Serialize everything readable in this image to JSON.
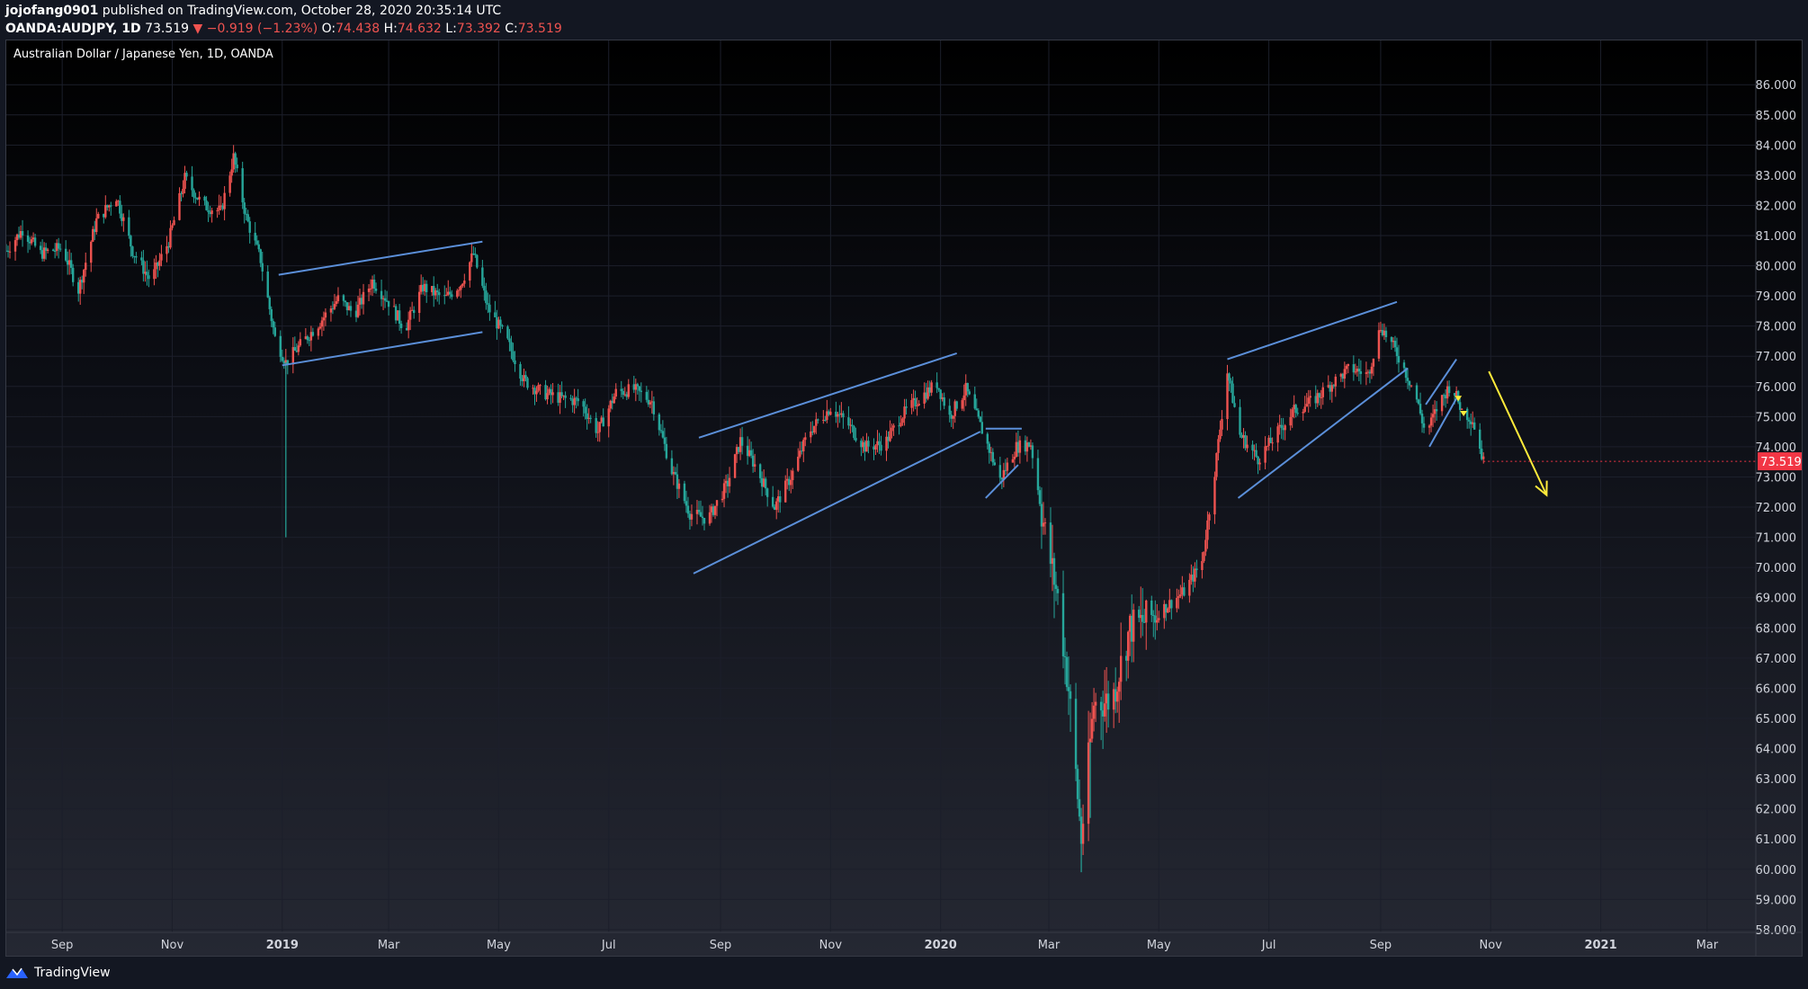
{
  "header": {
    "author": "jojofang0901",
    "published": "published on TradingView.com, October 28, 2020 20:35:14 UTC",
    "symbol": "OANDA:AUDJPY, 1D",
    "last": "73.519",
    "arrow": "▼",
    "change": "−0.919 (−1.23%)",
    "o_label": "O:",
    "o_val": "74.438",
    "h_label": "H:",
    "h_val": "74.632",
    "l_label": "L:",
    "l_val": "73.392",
    "c_label": "C:",
    "c_val": "73.519"
  },
  "footer": {
    "brand": "TradingView"
  },
  "colors": {
    "up": "#ef5350",
    "down": "#26a69a",
    "trendline": "#5b8fd9",
    "arrow": "#ffeb3b",
    "grid": "#1c1f2b",
    "badge": "#f23645"
  },
  "chart_data": {
    "type": "candlestick",
    "title": "Australian Dollar / Japanese Yen, 1D, OANDA",
    "ylim": [
      57.6,
      86.9
    ],
    "y_ticks": [
      "86.000",
      "85.000",
      "84.000",
      "83.000",
      "82.000",
      "81.000",
      "80.000",
      "79.000",
      "78.000",
      "77.000",
      "76.000",
      "75.000",
      "74.000",
      "73.000",
      "72.000",
      "71.000",
      "70.000",
      "69.000",
      "68.000",
      "67.000",
      "66.000",
      "65.000",
      "64.000",
      "63.000",
      "62.000",
      "61.000",
      "60.000",
      "59.000",
      "58.000"
    ],
    "x_ticks": [
      "Sep",
      "Nov",
      "2019",
      "Mar",
      "May",
      "Jul",
      "Sep",
      "Nov",
      "2020",
      "Mar",
      "May",
      "Jul",
      "Sep",
      "Nov",
      "2021",
      "Mar"
    ],
    "x_tick_dates": [
      "2018-09-01",
      "2018-11-01",
      "2019-01-01",
      "2019-03-01",
      "2019-05-01",
      "2019-07-01",
      "2019-09-01",
      "2019-11-01",
      "2020-01-01",
      "2020-03-01",
      "2020-05-01",
      "2020-07-01",
      "2020-09-01",
      "2020-11-01",
      "2021-01-01",
      "2021-03-01"
    ],
    "last_price_label": "73.519",
    "last_price": 73.519,
    "price_path": [
      [
        "2018-08-01",
        80.5
      ],
      [
        "2018-08-10",
        81.2
      ],
      [
        "2018-08-20",
        80.4
      ],
      [
        "2018-09-01",
        80.6
      ],
      [
        "2018-09-10",
        79.2
      ],
      [
        "2018-09-20",
        81.5
      ],
      [
        "2018-10-01",
        82.3
      ],
      [
        "2018-10-10",
        80.5
      ],
      [
        "2018-10-20",
        79.5
      ],
      [
        "2018-10-30",
        80.8
      ],
      [
        "2018-11-08",
        82.9
      ],
      [
        "2018-11-18",
        82.0
      ],
      [
        "2018-11-28",
        81.8
      ],
      [
        "2018-12-05",
        83.6
      ],
      [
        "2018-12-12",
        81.6
      ],
      [
        "2018-12-20",
        80.2
      ],
      [
        "2018-12-28",
        77.6
      ],
      [
        "2019-01-03",
        76.8
      ],
      [
        "2019-01-10",
        77.3
      ],
      [
        "2019-01-20",
        78.0
      ],
      [
        "2019-02-01",
        78.9
      ],
      [
        "2019-02-10",
        78.4
      ],
      [
        "2019-02-20",
        79.5
      ],
      [
        "2019-03-01",
        78.8
      ],
      [
        "2019-03-10",
        77.9
      ],
      [
        "2019-03-20",
        79.3
      ],
      [
        "2019-04-01",
        78.9
      ],
      [
        "2019-04-10",
        79.4
      ],
      [
        "2019-04-17",
        80.4
      ],
      [
        "2019-04-25",
        78.6
      ],
      [
        "2019-05-05",
        77.6
      ],
      [
        "2019-05-15",
        76.2
      ],
      [
        "2019-05-25",
        75.8
      ],
      [
        "2019-06-05",
        75.6
      ],
      [
        "2019-06-15",
        75.5
      ],
      [
        "2019-06-25",
        74.5
      ],
      [
        "2019-07-05",
        75.8
      ],
      [
        "2019-07-15",
        75.9
      ],
      [
        "2019-07-25",
        75.5
      ],
      [
        "2019-08-05",
        73.2
      ],
      [
        "2019-08-15",
        71.8
      ],
      [
        "2019-08-25",
        71.6
      ],
      [
        "2019-09-05",
        72.8
      ],
      [
        "2019-09-12",
        74.2
      ],
      [
        "2019-09-20",
        73.4
      ],
      [
        "2019-10-01",
        72.0
      ],
      [
        "2019-10-10",
        73.0
      ],
      [
        "2019-10-20",
        74.5
      ],
      [
        "2019-11-01",
        75.3
      ],
      [
        "2019-11-10",
        74.8
      ],
      [
        "2019-11-20",
        74.0
      ],
      [
        "2019-12-01",
        74.1
      ],
      [
        "2019-12-10",
        75.0
      ],
      [
        "2019-12-20",
        75.6
      ],
      [
        "2019-12-30",
        76.1
      ],
      [
        "2020-01-06",
        75.0
      ],
      [
        "2020-01-15",
        75.9
      ],
      [
        "2020-01-25",
        74.4
      ],
      [
        "2020-02-03",
        72.9
      ],
      [
        "2020-02-12",
        74.0
      ],
      [
        "2020-02-20",
        74.1
      ],
      [
        "2020-02-28",
        71.1
      ],
      [
        "2020-03-06",
        69.0
      ],
      [
        "2020-03-12",
        66.0
      ],
      [
        "2020-03-19",
        61.0
      ],
      [
        "2020-03-26",
        65.5
      ],
      [
        "2020-04-05",
        65.6
      ],
      [
        "2020-04-15",
        68.0
      ],
      [
        "2020-04-25",
        68.3
      ],
      [
        "2020-05-05",
        68.7
      ],
      [
        "2020-05-15",
        69.2
      ],
      [
        "2020-05-25",
        70.2
      ],
      [
        "2020-06-01",
        73.2
      ],
      [
        "2020-06-08",
        76.5
      ],
      [
        "2020-06-15",
        74.4
      ],
      [
        "2020-06-25",
        73.6
      ],
      [
        "2020-07-05",
        74.4
      ],
      [
        "2020-07-15",
        75.2
      ],
      [
        "2020-07-25",
        75.5
      ],
      [
        "2020-08-05",
        76.1
      ],
      [
        "2020-08-15",
        76.6
      ],
      [
        "2020-08-25",
        76.4
      ],
      [
        "2020-09-01",
        78.0
      ],
      [
        "2020-09-10",
        77.1
      ],
      [
        "2020-09-20",
        75.8
      ],
      [
        "2020-09-26",
        74.4
      ],
      [
        "2020-10-03",
        75.4
      ],
      [
        "2020-10-10",
        76.1
      ],
      [
        "2020-10-16",
        75.2
      ],
      [
        "2020-10-22",
        74.9
      ],
      [
        "2020-10-28",
        73.5
      ]
    ],
    "spikes": [
      {
        "date": "2019-01-03",
        "low": 71.0
      },
      {
        "date": "2020-03-19",
        "low": 59.9
      },
      {
        "date": "2020-03-24",
        "low": 61.7
      }
    ],
    "trendlines": [
      {
        "from": [
          "2018-12-30",
          79.7
        ],
        "to": [
          "2019-04-22",
          80.8
        ]
      },
      {
        "from": [
          "2019-01-01",
          76.7
        ],
        "to": [
          "2019-04-22",
          77.8
        ]
      },
      {
        "from": [
          "2019-08-20",
          74.3
        ],
        "to": [
          "2020-01-10",
          77.1
        ]
      },
      {
        "from": [
          "2019-08-17",
          69.8
        ],
        "to": [
          "2020-01-23",
          74.5
        ]
      },
      {
        "from": [
          "2020-01-26",
          74.6
        ],
        "to": [
          "2020-02-15",
          74.6
        ]
      },
      {
        "from": [
          "2020-01-26",
          72.3
        ],
        "to": [
          "2020-02-13",
          73.4
        ]
      },
      {
        "from": [
          "2020-06-08",
          76.9
        ],
        "to": [
          "2020-09-10",
          78.8
        ]
      },
      {
        "from": [
          "2020-06-14",
          72.3
        ],
        "to": [
          "2020-09-16",
          76.6
        ]
      },
      {
        "from": [
          "2020-09-26",
          75.4
        ],
        "to": [
          "2020-10-13",
          76.9
        ]
      },
      {
        "from": [
          "2020-09-28",
          74.0
        ],
        "to": [
          "2020-10-13",
          75.6
        ]
      }
    ],
    "forecast_arrow": {
      "from": [
        "2020-10-31",
        76.5
      ],
      "to": [
        "2020-12-02",
        72.4
      ]
    },
    "markers": [
      {
        "date": "2020-10-14",
        "price": 75.6
      },
      {
        "date": "2020-10-17",
        "price": 75.1
      }
    ]
  }
}
